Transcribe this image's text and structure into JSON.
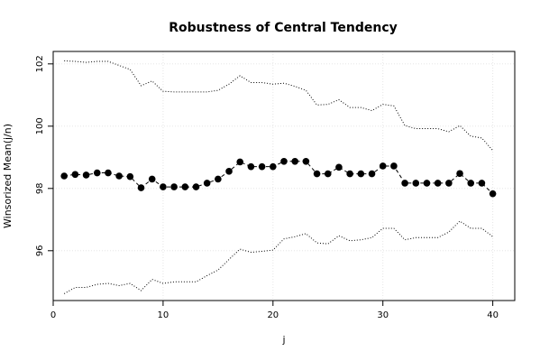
{
  "chart_data": {
    "type": "line",
    "title": "Robustness of Central Tendency",
    "xlabel": "j",
    "ylabel": "Winsorized Mean(j/n)",
    "xlim": [
      0,
      42
    ],
    "ylim": [
      94.4,
      102.4
    ],
    "xticks": [
      0,
      10,
      20,
      30,
      40
    ],
    "yticks": [
      96,
      98,
      100,
      102
    ],
    "grid": true,
    "x": [
      1,
      2,
      3,
      4,
      5,
      6,
      7,
      8,
      9,
      10,
      11,
      12,
      13,
      14,
      15,
      16,
      17,
      18,
      19,
      20,
      21,
      22,
      23,
      24,
      25,
      26,
      27,
      28,
      29,
      30,
      31,
      32,
      33,
      34,
      35,
      36,
      37,
      38,
      39,
      40
    ],
    "series": [
      {
        "style": "points-dashed",
        "values": [
          98.4,
          98.45,
          98.43,
          98.5,
          98.5,
          98.4,
          98.38,
          98.02,
          98.3,
          98.05,
          98.05,
          98.05,
          98.05,
          98.17,
          98.3,
          98.55,
          98.85,
          98.7,
          98.7,
          98.7,
          98.87,
          98.87,
          98.87,
          98.47,
          98.47,
          98.68,
          98.47,
          98.47,
          98.47,
          98.72,
          98.72,
          98.17,
          98.17,
          98.17,
          98.17,
          98.17,
          98.48,
          98.17,
          98.17,
          97.83
        ]
      },
      {
        "style": "dotted",
        "values": [
          102.1,
          102.08,
          102.05,
          102.08,
          102.08,
          101.95,
          101.82,
          101.3,
          101.45,
          101.12,
          101.1,
          101.1,
          101.1,
          101.1,
          101.15,
          101.35,
          101.62,
          101.4,
          101.4,
          101.35,
          101.38,
          101.28,
          101.15,
          100.68,
          100.7,
          100.85,
          100.6,
          100.6,
          100.5,
          100.7,
          100.65,
          100.02,
          99.92,
          99.92,
          99.92,
          99.82,
          100.02,
          99.68,
          99.62,
          99.22
        ]
      },
      {
        "style": "dotted",
        "values": [
          94.62,
          94.82,
          94.82,
          94.92,
          94.95,
          94.88,
          94.95,
          94.72,
          95.08,
          94.95,
          95.0,
          95.0,
          95.0,
          95.2,
          95.38,
          95.72,
          96.05,
          95.95,
          95.98,
          96.02,
          96.38,
          96.45,
          96.55,
          96.25,
          96.22,
          96.48,
          96.32,
          96.35,
          96.42,
          96.72,
          96.72,
          96.35,
          96.42,
          96.42,
          96.42,
          96.6,
          96.95,
          96.72,
          96.72,
          96.45
        ]
      }
    ]
  }
}
